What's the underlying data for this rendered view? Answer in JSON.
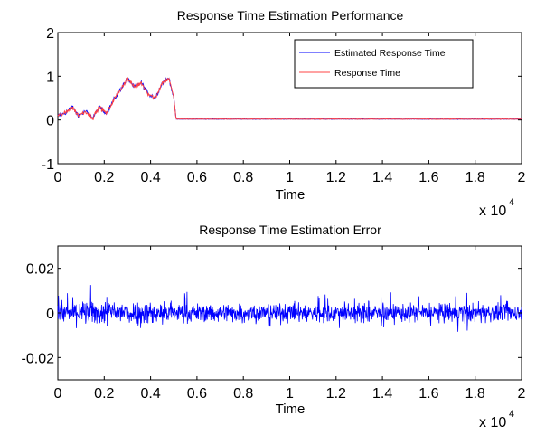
{
  "chart_data": [
    {
      "type": "line",
      "title": "Response Time Estimation Performance",
      "xlabel": "Time",
      "ylabel": "",
      "x_scale_label": "x 10",
      "x_scale_exponent": "4",
      "xlim": [
        0,
        20000
      ],
      "ylim": [
        -1,
        2
      ],
      "x_ticks": [
        0,
        2000,
        4000,
        6000,
        8000,
        10000,
        12000,
        14000,
        16000,
        18000,
        20000
      ],
      "x_tick_labels": [
        "0",
        "0.2",
        "0.4",
        "0.6",
        "0.8",
        "1",
        "1.2",
        "1.4",
        "1.6",
        "1.8",
        "2"
      ],
      "y_ticks": [
        -1,
        0,
        1,
        2
      ],
      "y_tick_labels": [
        "-1",
        "0",
        "1",
        "2"
      ],
      "grid": false,
      "legend": "top-right",
      "series": [
        {
          "name": "Estimated Response Time",
          "color": "#0000ff",
          "x": [
            0,
            300,
            600,
            900,
            1200,
            1500,
            1800,
            2100,
            2400,
            2700,
            3000,
            3300,
            3600,
            3900,
            4200,
            4500,
            4800,
            5000,
            5100,
            6000,
            8000,
            10000,
            12000,
            14000,
            16000,
            18000,
            20000
          ],
          "y": [
            0.1,
            0.15,
            0.3,
            0.1,
            0.2,
            0.05,
            0.3,
            0.15,
            0.45,
            0.7,
            0.95,
            0.75,
            0.85,
            0.6,
            0.5,
            0.85,
            0.95,
            0.5,
            0.02,
            0.02,
            0.02,
            0.02,
            0.02,
            0.02,
            0.02,
            0.02,
            0.02
          ]
        },
        {
          "name": "Response Time",
          "color": "#ff4444",
          "x": [
            0,
            300,
            600,
            900,
            1200,
            1500,
            1800,
            2100,
            2400,
            2700,
            3000,
            3300,
            3600,
            3900,
            4200,
            4500,
            4800,
            5000,
            5100,
            6000,
            8000,
            10000,
            12000,
            14000,
            16000,
            18000,
            20000
          ],
          "y": [
            0.1,
            0.15,
            0.3,
            0.1,
            0.2,
            0.05,
            0.3,
            0.15,
            0.45,
            0.7,
            0.95,
            0.75,
            0.85,
            0.6,
            0.5,
            0.85,
            0.95,
            0.5,
            0.02,
            0.02,
            0.02,
            0.02,
            0.02,
            0.02,
            0.02,
            0.02,
            0.02
          ]
        }
      ]
    },
    {
      "type": "line",
      "title": "Response Time Estimation Error",
      "xlabel": "Time",
      "ylabel": "",
      "x_scale_label": "x 10",
      "x_scale_exponent": "4",
      "xlim": [
        0,
        20000
      ],
      "ylim": [
        -0.03,
        0.03
      ],
      "x_ticks": [
        0,
        2000,
        4000,
        6000,
        8000,
        10000,
        12000,
        14000,
        16000,
        18000,
        20000
      ],
      "x_tick_labels": [
        "0",
        "0.2",
        "0.4",
        "0.6",
        "0.8",
        "1",
        "1.2",
        "1.4",
        "1.6",
        "1.8",
        "2"
      ],
      "y_ticks": [
        -0.02,
        0,
        0.02
      ],
      "y_tick_labels": [
        "-0.02",
        "0",
        "0.02"
      ],
      "grid": false,
      "series": [
        {
          "color": "#0000ff",
          "x": [
            0,
            5000,
            10000,
            15000,
            20000
          ],
          "y": [
            0,
            0,
            0,
            0,
            0
          ]
        }
      ]
    }
  ]
}
